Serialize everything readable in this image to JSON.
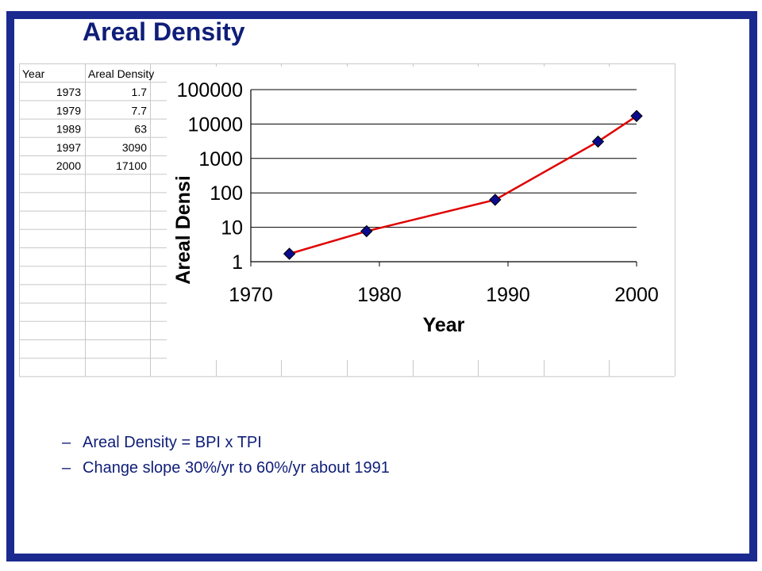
{
  "slide": {
    "title": "Areal Density",
    "bullets": [
      "Areal Density = BPI x TPI",
      "Change slope 30%/yr to 60%/yr about 1991"
    ]
  },
  "table": {
    "headers": [
      "Year",
      "Areal Density"
    ],
    "rows": [
      [
        "1973",
        "1.7"
      ],
      [
        "1979",
        "7.7"
      ],
      [
        "1989",
        "63"
      ],
      [
        "1997",
        "3090"
      ],
      [
        "2000",
        "17100"
      ]
    ]
  },
  "chart_data": {
    "type": "line",
    "scale_y": "log",
    "x": [
      1973,
      1979,
      1989,
      1997,
      2000
    ],
    "series": [
      {
        "values": [
          1.7,
          7.7,
          63,
          3090,
          17100
        ],
        "color": "#e00000",
        "marker_color": "#0a0a8c"
      }
    ],
    "xlabel": "Year",
    "ylabel": "Areal Densi",
    "xlim": [
      1970,
      2000
    ],
    "ylim": [
      1,
      100000
    ],
    "x_ticks": [
      "1970",
      "1980",
      "1990",
      "2000"
    ],
    "y_ticks": [
      "1",
      "10",
      "100",
      "1000",
      "10000",
      "100000"
    ],
    "grid": "horizontal"
  },
  "colors": {
    "border": "#1b2a8f",
    "title_text": "#0f1e78"
  }
}
